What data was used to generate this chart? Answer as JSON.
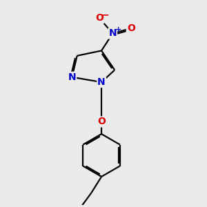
{
  "bg_color": "#ebebeb",
  "bond_color": "#000000",
  "bond_width": 1.6,
  "atom_colors": {
    "N": "#0000cc",
    "O": "#dd0000",
    "C": "#000000"
  },
  "font_size_atom": 10,
  "font_size_charge": 8
}
